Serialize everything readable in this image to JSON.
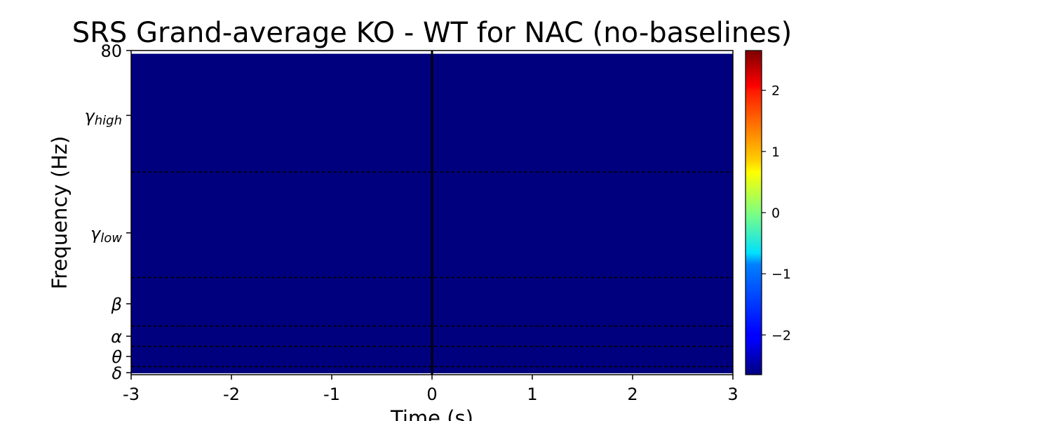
{
  "chart_data": {
    "type": "heatmap",
    "title": "SRS Grand-average KO - WT for NAC (no-baselines)",
    "xlabel": "Time (s)",
    "ylabel": "Frequency (Hz)",
    "xlim": [
      -3,
      3
    ],
    "ylim": [
      0,
      80
    ],
    "x_ticks": [
      "-3",
      "-2",
      "-1",
      "0",
      "1",
      "2",
      "3"
    ],
    "y_top_tick": "80",
    "y_band_ticks": [
      {
        "base": "δ",
        "sub": "",
        "value": 0.5
      },
      {
        "base": "θ",
        "sub": "",
        "value": 4.5
      },
      {
        "base": "α",
        "sub": "",
        "value": 9.5
      },
      {
        "base": "β",
        "sub": "",
        "value": 17.5
      },
      {
        "base": "γ",
        "sub": "low",
        "value": 35
      },
      {
        "base": "γ",
        "sub": "high",
        "value": 64
      }
    ],
    "band_boundaries_hz": [
      2,
      7,
      12,
      24,
      50
    ],
    "event_line_time_s": 0,
    "uniform_value": -2.65,
    "colorbar": {
      "colormap": "jet",
      "range": [
        -2.65,
        2.65
      ],
      "ticks": [
        -2,
        -1,
        0,
        1,
        2
      ],
      "tick_labels": [
        "−2",
        "−1",
        "0",
        "1",
        "2"
      ]
    },
    "colors": {
      "heatmap_fill": "#00007f",
      "event_line": "#000000",
      "boundary_lines": "#000000"
    }
  }
}
